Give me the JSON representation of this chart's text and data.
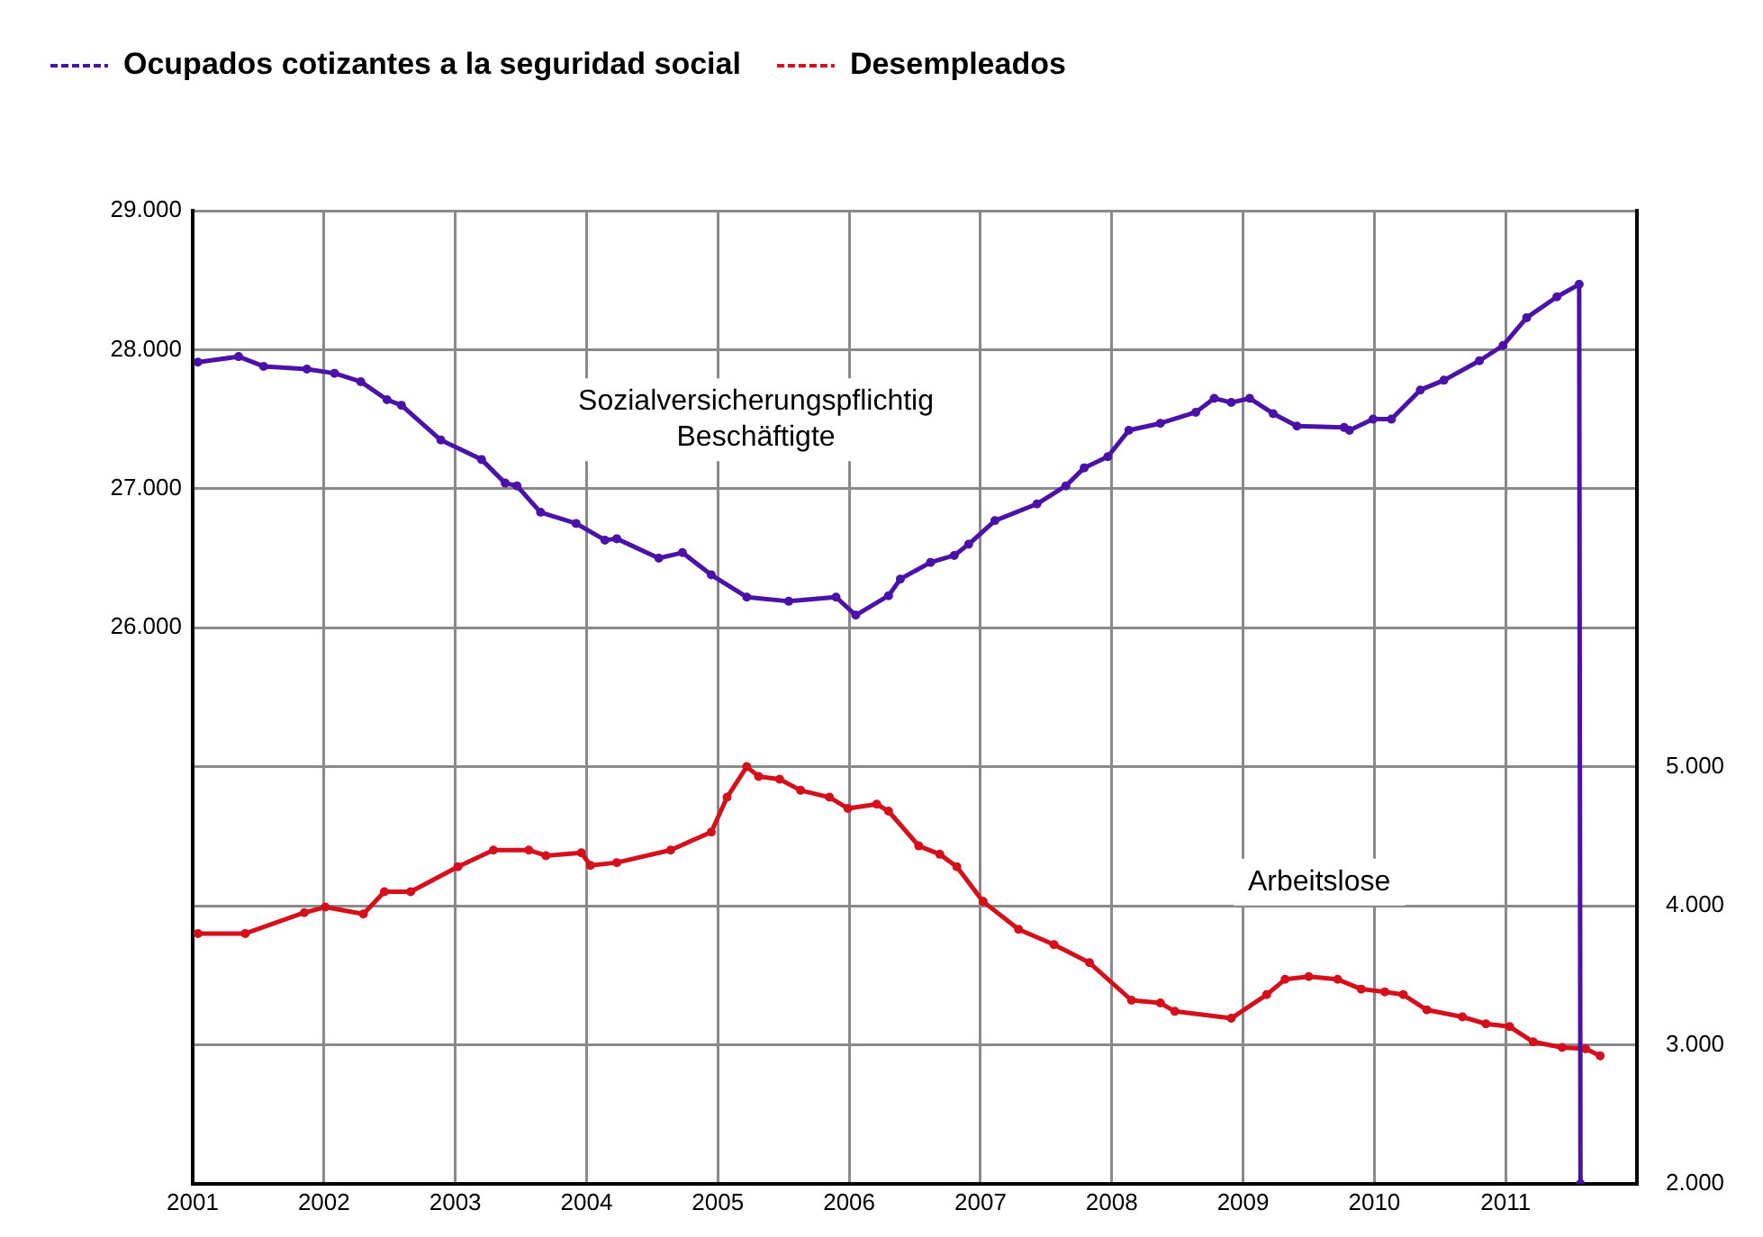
{
  "chart_data": {
    "type": "line",
    "x": [
      2001.04,
      2001.35,
      2001.54,
      2001.87,
      2002.08,
      2002.28,
      2002.48,
      2002.59,
      2002.89,
      2003.2,
      2003.38,
      2003.47,
      2003.65,
      2003.92,
      2004.14,
      2004.23,
      2004.55,
      2004.73,
      2004.95,
      2005.22,
      2005.54,
      2005.9,
      2006.05,
      2006.3,
      2006.39,
      2006.62,
      2006.8,
      2006.91,
      2007.11,
      2007.43,
      2007.65,
      2007.79,
      2007.97,
      2008.13,
      2008.37,
      2008.64,
      2008.78,
      2008.91,
      2009.05,
      2009.23,
      2009.41,
      2009.77,
      2009.81,
      2009.99,
      2010.13,
      2010.35,
      2010.53,
      2010.8,
      2010.98,
      2011.16,
      2011.39,
      2011.56,
      2011.57
    ],
    "series": [
      {
        "name": "Ocupados cotizantes a la seguridad social",
        "color": "#4b12a8",
        "values": [
          27910,
          27950,
          27880,
          27860,
          27830,
          27770,
          27640,
          27600,
          27350,
          27210,
          27040,
          27020,
          26830,
          26750,
          26630,
          26640,
          26500,
          26540,
          26380,
          26220,
          26190,
          26220,
          26090,
          26230,
          26350,
          26470,
          26520,
          26600,
          26770,
          26890,
          27020,
          27150,
          27230,
          27420,
          27470,
          27550,
          27650,
          27620,
          27650,
          27540,
          27450,
          27440,
          27420,
          27500,
          27500,
          27710,
          27780,
          27920,
          28030,
          28230,
          28380,
          28470,
          22000
        ]
      },
      {
        "name": "Desempleados",
        "color": "#d4101c",
        "axis": "y2",
        "x": [
          2001.04,
          2001.4,
          2001.85,
          2002.01,
          2002.3,
          2002.46,
          2002.66,
          2003.02,
          2003.29,
          2003.56,
          2003.69,
          2003.96,
          2004.03,
          2004.23,
          2004.64,
          2004.95,
          2005.07,
          2005.22,
          2005.31,
          2005.47,
          2005.63,
          2005.85,
          2005.99,
          2006.21,
          2006.3,
          2006.53,
          2006.69,
          2006.82,
          2007.02,
          2007.29,
          2007.56,
          2007.83,
          2008.15,
          2008.37,
          2008.48,
          2008.91,
          2009.18,
          2009.32,
          2009.5,
          2009.72,
          2009.9,
          2010.08,
          2010.22,
          2010.4,
          2010.67,
          2010.85,
          2011.03,
          2011.21,
          2011.43,
          2011.61,
          2011.72
        ],
        "values": [
          3800,
          3800,
          3950,
          3990,
          3940,
          4100,
          4100,
          4280,
          4400,
          4400,
          4360,
          4380,
          4290,
          4310,
          4400,
          4530,
          4780,
          5000,
          4930,
          4910,
          4830,
          4780,
          4700,
          4730,
          4680,
          4430,
          4370,
          4280,
          4030,
          3830,
          3720,
          3590,
          3320,
          3300,
          3240,
          3190,
          3360,
          3470,
          3490,
          3470,
          3400,
          3380,
          3360,
          3250,
          3200,
          3150,
          3130,
          3020,
          2980,
          2970,
          2920
        ]
      }
    ],
    "xlim": [
      2001,
      2012
    ],
    "xticks": [
      2001,
      2002,
      2003,
      2004,
      2005,
      2006,
      2007,
      2008,
      2009,
      2010,
      2011,
      {
        "value": 2012,
        "label": null
      }
    ],
    "ylim": [
      22000,
      29000
    ],
    "yticks": [
      {
        "value": 22000,
        "label": null
      },
      {
        "value": 23000,
        "label": null
      },
      {
        "value": 24000,
        "label": null
      },
      {
        "value": 25000,
        "label": null
      },
      {
        "value": 26000,
        "label": "26.000"
      },
      {
        "value": 27000,
        "label": "27.000"
      },
      {
        "value": 28000,
        "label": "28.000"
      },
      {
        "value": 29000,
        "label": "29.000"
      }
    ],
    "y2lim": [
      2000,
      9000
    ],
    "y2ticks": [
      {
        "value": 2000,
        "label": "2.000"
      },
      {
        "value": 3000,
        "label": "3.000"
      },
      {
        "value": 4000,
        "label": "4.000"
      },
      {
        "value": 5000,
        "label": "5.000"
      }
    ],
    "annotations": [
      "Sozialversicherungspflichtig\nBeschäftigte",
      "Arbeitslose"
    ],
    "grid": true,
    "legend": "top left",
    "marker": "circle",
    "line_style": "solid"
  }
}
